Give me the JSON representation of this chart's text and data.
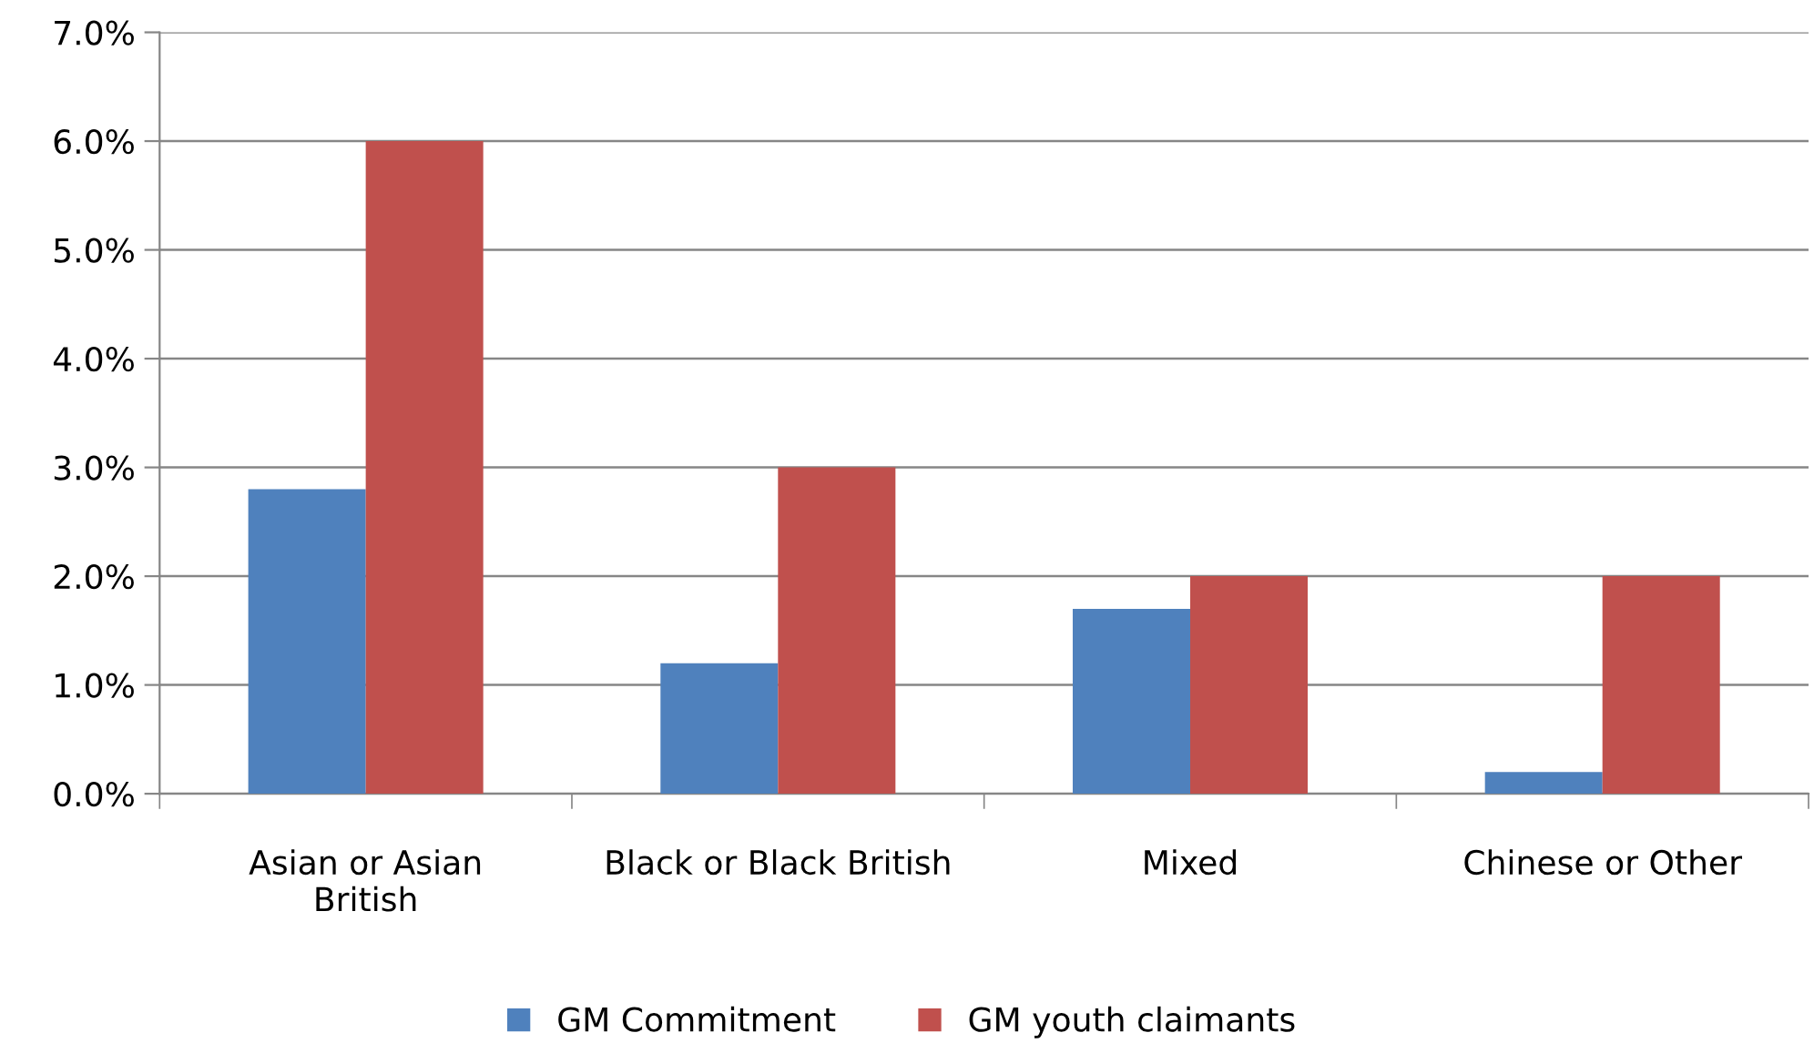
{
  "chart_data": {
    "type": "bar",
    "categories": [
      "Asian or Asian\nBritish",
      "Black or Black British",
      "Mixed",
      "Chinese or Other"
    ],
    "series": [
      {
        "name": "GM Commitment",
        "color": "#4f81bd",
        "values": [
          2.8,
          1.2,
          1.7,
          0.2
        ]
      },
      {
        "name": "GM youth claimants",
        "color": "#c0504d",
        "values": [
          6.0,
          3.0,
          2.0,
          2.0
        ]
      }
    ],
    "ylim": [
      0,
      7
    ],
    "yticks": [
      {
        "value": 0,
        "label": "0.0%"
      },
      {
        "value": 1,
        "label": "1.0%"
      },
      {
        "value": 2,
        "label": "2.0%"
      },
      {
        "value": 3,
        "label": "3.0%"
      },
      {
        "value": 4,
        "label": "4.0%"
      },
      {
        "value": 5,
        "label": "5.0%"
      },
      {
        "value": 6,
        "label": "6.0%"
      },
      {
        "value": 7,
        "label": "7.0%"
      }
    ],
    "grid": "y",
    "legend": "bottom"
  }
}
